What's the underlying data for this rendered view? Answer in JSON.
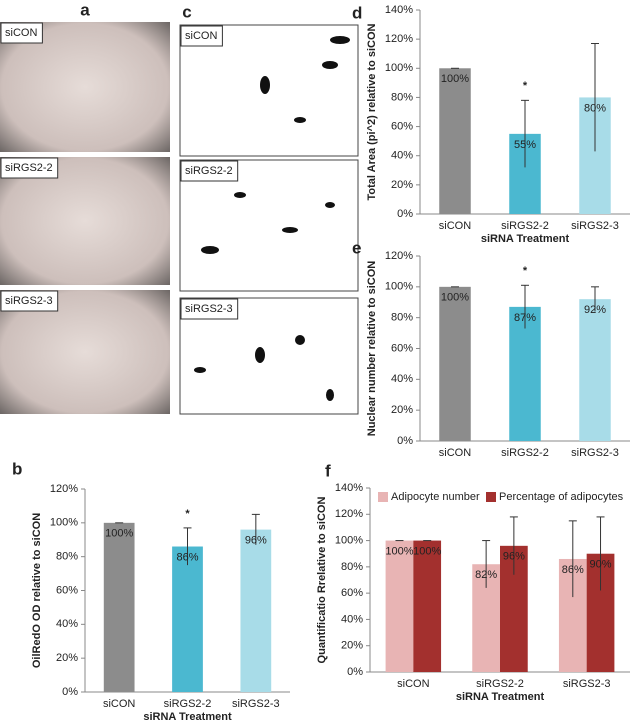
{
  "images": [
    {
      "panel": "a",
      "labels": [
        "siCON",
        "siRGS2-2",
        "siRGS2-3"
      ]
    },
    {
      "panel": "c",
      "labels": [
        "siCON",
        "siRGS2-2",
        "siRGS2-3"
      ]
    }
  ],
  "chart_data": [
    {
      "type": "bar",
      "panel": "d",
      "ylabel": "Total Area (pi^2) relative to  siCON",
      "xlabel": "siRNA Treatment",
      "categories": [
        "siCON",
        "siRGS2-2",
        "siRGS2-3"
      ],
      "values": [
        100,
        55,
        80
      ],
      "errors": [
        0,
        23,
        37
      ],
      "value_labels": [
        "100%",
        "55%",
        "80%"
      ],
      "colors": [
        "#8c8c8c",
        "#4bb8d0",
        "#a8dce8"
      ],
      "annotation": "*",
      "ylim": [
        0,
        140
      ],
      "yticks": [
        {
          "value": 0,
          "label": "0%"
        },
        {
          "value": 20,
          "label": "20%"
        },
        {
          "value": 40,
          "label": "40%"
        },
        {
          "value": 60,
          "label": "60%"
        },
        {
          "value": 80,
          "label": "80%"
        },
        {
          "value": 100,
          "label": "100%"
        },
        {
          "value": 120,
          "label": "120%"
        },
        {
          "value": 140,
          "label": "140%"
        }
      ]
    },
    {
      "type": "bar",
      "panel": "e",
      "ylabel": "Nuclear number  relative to  siCON",
      "categories": [
        "siCON",
        "siRGS2-2",
        "siRGS2-3"
      ],
      "values": [
        100,
        87,
        92
      ],
      "errors": [
        0,
        14,
        8
      ],
      "value_labels": [
        "100%",
        "87%",
        "92%"
      ],
      "colors": [
        "#8c8c8c",
        "#4bb8d0",
        "#a8dce8"
      ],
      "annotation": "*",
      "ylim": [
        0,
        120
      ],
      "yticks": [
        {
          "value": 0,
          "label": "0%"
        },
        {
          "value": 20,
          "label": "20%"
        },
        {
          "value": 40,
          "label": "40%"
        },
        {
          "value": 60,
          "label": "60%"
        },
        {
          "value": 80,
          "label": "80%"
        },
        {
          "value": 100,
          "label": "100%"
        },
        {
          "value": 120,
          "label": "120%"
        }
      ]
    },
    {
      "type": "bar",
      "panel": "b",
      "ylabel": "OilRedO OD relative to  siCON",
      "xlabel": "siRNA Treatment",
      "categories": [
        "siCON",
        "siRGS2-2",
        "siRGS2-3"
      ],
      "values": [
        100,
        86,
        96
      ],
      "errors": [
        0,
        11,
        9
      ],
      "value_labels": [
        "100%",
        "86%",
        "96%"
      ],
      "colors": [
        "#8c8c8c",
        "#4bb8d0",
        "#a8dce8"
      ],
      "annotation": "*",
      "ylim": [
        0,
        120
      ],
      "yticks": [
        {
          "value": 0,
          "label": "0%"
        },
        {
          "value": 20,
          "label": "20%"
        },
        {
          "value": 40,
          "label": "40%"
        },
        {
          "value": 60,
          "label": "60%"
        },
        {
          "value": 80,
          "label": "80%"
        },
        {
          "value": 100,
          "label": "100%"
        },
        {
          "value": 120,
          "label": "120%"
        }
      ]
    },
    {
      "type": "grouped_bar",
      "panel": "f",
      "ylabel": "Quantificatio Rrelative to  siCON",
      "xlabel": "siRNA Treatment",
      "categories": [
        "siCON",
        "siRGS2-2",
        "siRGS2-3"
      ],
      "series": [
        {
          "name": "Adipocyte number",
          "color": "#e8b4b4",
          "values": [
            100,
            82,
            86
          ],
          "errors": [
            0,
            18,
            29
          ],
          "value_labels": [
            "100%",
            "82%",
            "86%"
          ]
        },
        {
          "name": "Percentage of adipocytes",
          "color": "#a3302e",
          "values": [
            100,
            96,
            90
          ],
          "errors": [
            0,
            22,
            28
          ],
          "value_labels": [
            "100%",
            "96%",
            "90%"
          ]
        }
      ],
      "ylim": [
        0,
        140
      ],
      "yticks": [
        {
          "value": 0,
          "label": "0%"
        },
        {
          "value": 20,
          "label": "20%"
        },
        {
          "value": 40,
          "label": "40%"
        },
        {
          "value": 60,
          "label": "60%"
        },
        {
          "value": 80,
          "label": "80%"
        },
        {
          "value": 100,
          "label": "100%"
        },
        {
          "value": 120,
          "label": "120%"
        },
        {
          "value": 140,
          "label": "140%"
        }
      ]
    }
  ]
}
